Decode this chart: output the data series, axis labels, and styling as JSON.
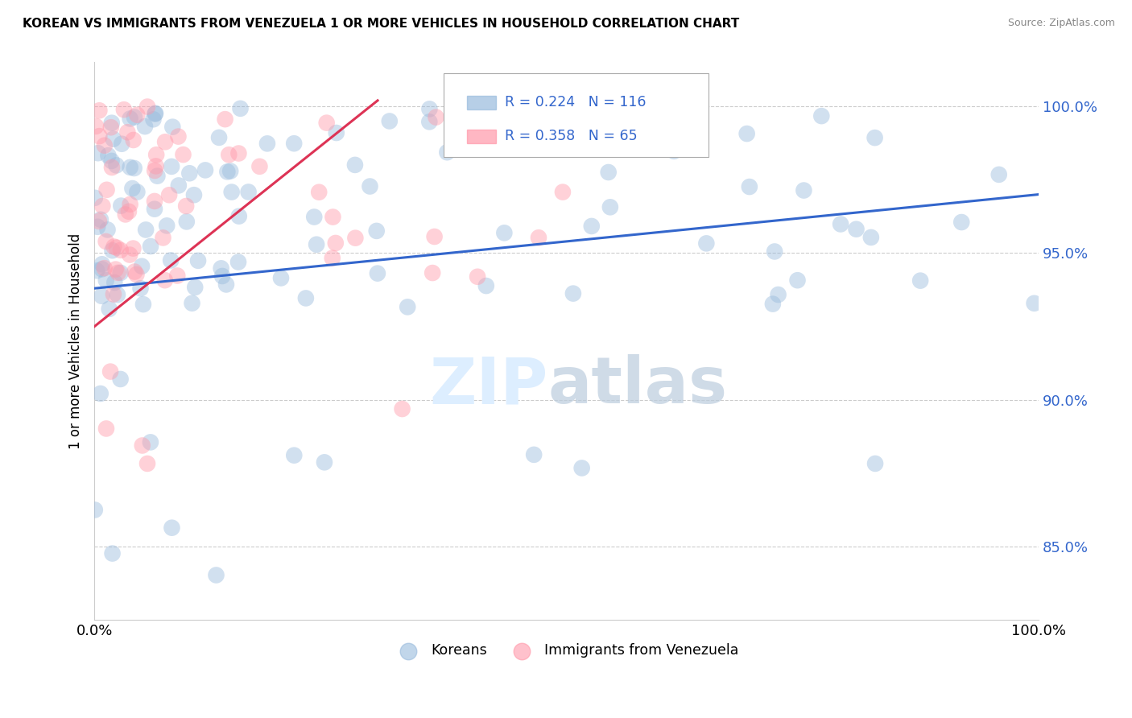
{
  "title": "KOREAN VS IMMIGRANTS FROM VENEZUELA 1 OR MORE VEHICLES IN HOUSEHOLD CORRELATION CHART",
  "source": "Source: ZipAtlas.com",
  "ylabel": "1 or more Vehicles in Household",
  "legend_korean": "Koreans",
  "legend_venezuela": "Immigrants from Venezuela",
  "r_korean": 0.224,
  "n_korean": 116,
  "r_venezuela": 0.358,
  "n_venezuela": 65,
  "color_korean": "#99BBDD",
  "color_venezuela": "#FF99AA",
  "color_line_korean": "#3366CC",
  "color_line_venezuela": "#DD3355",
  "ytick_color": "#3366CC",
  "marker_size": 220,
  "marker_alpha": 0.45,
  "line_k_x0": 0,
  "line_k_y0": 93.8,
  "line_k_x1": 100,
  "line_k_y1": 97.0,
  "line_v_x0": 0,
  "line_v_y0": 92.5,
  "line_v_x1": 30,
  "line_v_y1": 100.2,
  "y_min": 82.5,
  "y_max": 101.5,
  "x_min": 0,
  "x_max": 100,
  "yticks": [
    85.0,
    90.0,
    95.0,
    100.0
  ],
  "watermark_zip_color": "#DDEEFF",
  "watermark_atlas_color": "#BBCCDD"
}
